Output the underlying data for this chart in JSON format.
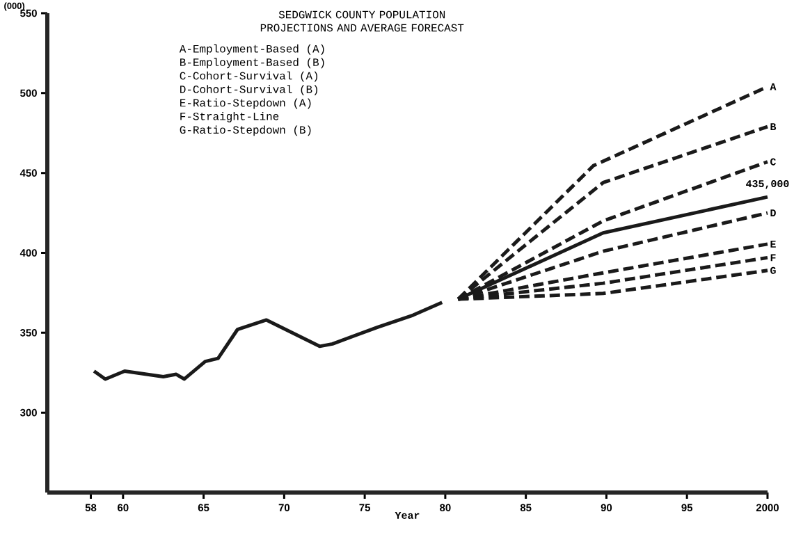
{
  "chart_data": {
    "type": "line",
    "title": "SEDGWICK COUNTY POPULATION PROJECTIONS AND AVERAGE FORECAST",
    "xlabel": "Year",
    "ylabel": "(000)",
    "xlim": [
      1955.3,
      2000
    ],
    "ylim": [
      250,
      550
    ],
    "xticks": [
      {
        "value": 1958,
        "label": "58"
      },
      {
        "value": 1960,
        "label": "60"
      },
      {
        "value": 1965,
        "label": "65"
      },
      {
        "value": 1970,
        "label": "70"
      },
      {
        "value": 1975,
        "label": "75"
      },
      {
        "value": 1980,
        "label": "80"
      },
      {
        "value": 1985,
        "label": "85"
      },
      {
        "value": 1990,
        "label": "90"
      },
      {
        "value": 1995,
        "label": "95"
      },
      2000
    ],
    "yticks": [
      300,
      350,
      400,
      450,
      500,
      550
    ],
    "marker": "none",
    "series": [
      {
        "color": "#1a1a1a",
        "line_style": "solid",
        "x": [
          1958.2,
          1958.9,
          1960.1,
          1962.5,
          1963.3,
          1963.8,
          1965.1,
          1965.9,
          1967.1,
          1968.9,
          1972.2,
          1973.0,
          1975.8,
          1978.0,
          1979.8
        ],
        "values": [
          326,
          321,
          326,
          322.5,
          324,
          321,
          332,
          334,
          352,
          358,
          341.5,
          343,
          353.5,
          361,
          369
        ]
      },
      {
        "name": "A",
        "color": "#1a1a1a",
        "line_style": "dashed",
        "x": [
          1980.8,
          1989.2,
          2000
        ],
        "values": [
          371,
          454.6,
          504
        ]
      },
      {
        "name": "B",
        "color": "#1a1a1a",
        "line_style": "dashed",
        "x": [
          1980.8,
          1989.8,
          2000
        ],
        "values": [
          371,
          444,
          479
        ]
      },
      {
        "name": "C",
        "color": "#1a1a1a",
        "line_style": "dashed",
        "x": [
          1980.8,
          1989.8,
          2000
        ],
        "values": [
          371,
          420,
          457
        ]
      },
      {
        "color": "#1a1a1a",
        "line_style": "solid",
        "x": [
          1980.8,
          1989.8,
          2000
        ],
        "values": [
          371,
          412.5,
          435
        ]
      },
      {
        "name": "D",
        "color": "#1a1a1a",
        "line_style": "dashed",
        "x": [
          1980.8,
          1989.8,
          2000
        ],
        "values": [
          371,
          401,
          425
        ]
      },
      {
        "name": "E",
        "color": "#1a1a1a",
        "line_style": "dashed",
        "x": [
          1980.8,
          1989.8,
          2000
        ],
        "values": [
          371,
          387.5,
          405.5
        ]
      },
      {
        "name": "F",
        "color": "#1a1a1a",
        "line_style": "dashed",
        "x": [
          1980.8,
          1989.8,
          2000
        ],
        "values": [
          371,
          381,
          397
        ]
      },
      {
        "name": "G",
        "color": "#1a1a1a",
        "line_style": "dashed",
        "x": [
          1980.8,
          1989.8,
          2000
        ],
        "values": [
          371,
          374.6,
          389
        ]
      }
    ],
    "annotations": [
      "A-Employment-Based (A)",
      "B-Employment-Based (B)",
      "C-Cohort-Survival (A)",
      "D-Cohort-Survival (B)",
      "E-Ratio-Stepdown (A)",
      "F-Straight-Line",
      "G-Ratio-Stepdown (B)",
      {
        "text": "435,000",
        "x": 2000,
        "y": 435
      }
    ]
  }
}
